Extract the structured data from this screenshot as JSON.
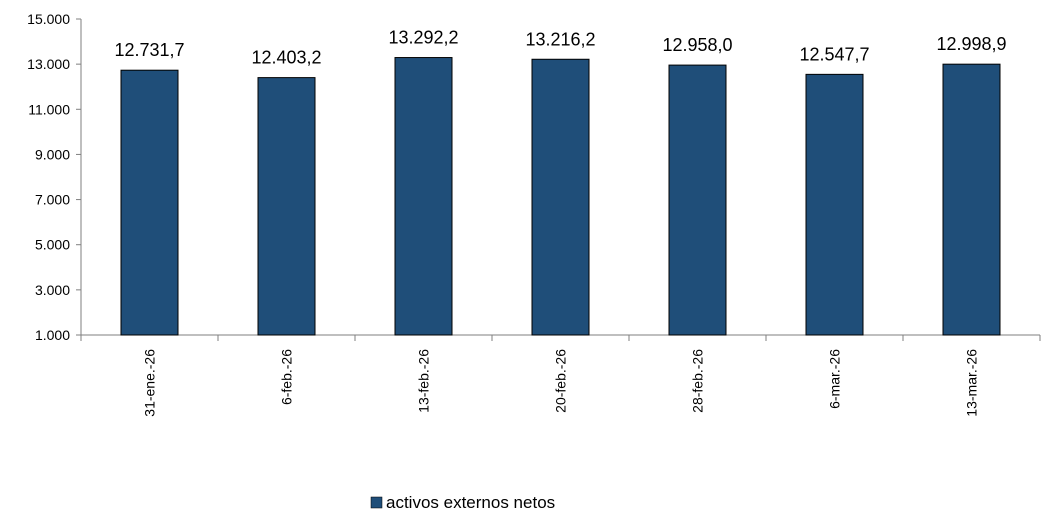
{
  "chart_data": {
    "type": "bar",
    "title": "",
    "xlabel": "",
    "ylabel": "",
    "categories": [
      "31-ene.-26",
      "6-feb.-26",
      "13-feb.-26",
      "20-feb.-26",
      "28-feb.-26",
      "6-mar.-26",
      "13-mar.-26"
    ],
    "series": [
      {
        "name": "activos externos netos",
        "values": [
          12731.7,
          12403.2,
          13292.2,
          13216.2,
          12958.0,
          12547.7,
          12998.9
        ],
        "value_labels": [
          "12.731,7",
          "12.403,2",
          "13.292,2",
          "13.216,2",
          "12.958,0",
          "12.547,7",
          "12.998,9"
        ],
        "color": "#1f4e79"
      }
    ],
    "ylim": [
      1000,
      15000
    ],
    "yticks": [
      1000,
      3000,
      5000,
      7000,
      9000,
      11000,
      13000,
      15000
    ],
    "ytick_labels": [
      "1.000",
      "3.000",
      "5.000",
      "7.000",
      "9.000",
      "11.000",
      "13.000",
      "15.000"
    ],
    "grid": false,
    "legend_position": "bottom",
    "x_tick_rotation": "vertical",
    "bar_edge_color": "#000000"
  }
}
